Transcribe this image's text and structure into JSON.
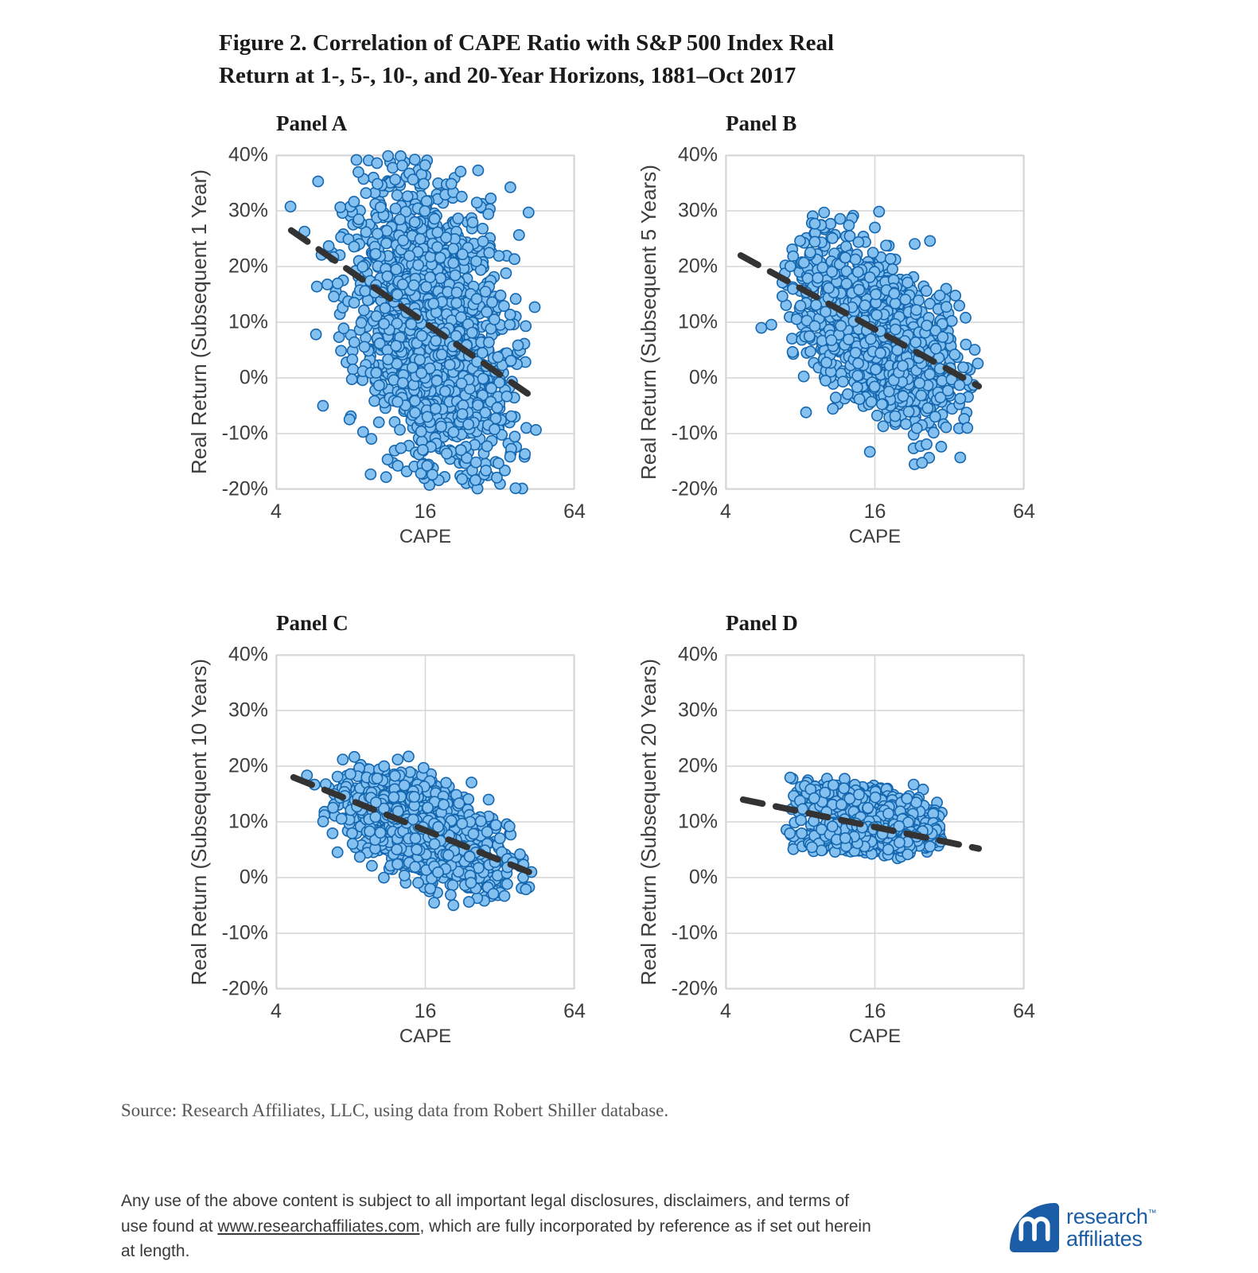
{
  "page": {
    "title_line1": "Figure 2. Correlation of CAPE Ratio with S&P 500 Index Real",
    "title_line2": "Return at 1-, 5-, 10-, and 20-Year Horizons, 1881–Oct 2017",
    "source_text": "Source:  Research Affiliates, LLC, using data from Robert Shiller database.",
    "legal_pre": "Any use of the above content is subject to all important legal disclosures, disclaimers, and terms of use found at ",
    "legal_link": "www.researchaffiliates.com",
    "legal_post": ", which are fully incorporated by reference as if set out herein at length.",
    "logo": {
      "word1": "research",
      "tm": "™",
      "word2": "affiliates"
    }
  },
  "style": {
    "marker_fill": "#85C1F0",
    "marker_stroke": "#1467AF",
    "trend_color": "#333333",
    "grid_color": "#D6D6D6",
    "axis_text": "#3d3d3d",
    "logo_blue": "#1A5DA6"
  },
  "chart_data": {
    "type": "scatter",
    "x_scale": "log2",
    "xlabel": "CAPE",
    "x_ticks": [
      4,
      16,
      64
    ],
    "xlim": [
      4,
      64
    ],
    "y_ticks_pct": [
      40,
      30,
      20,
      10,
      0,
      -10,
      -20
    ],
    "ylim_pct": [
      -20,
      40
    ],
    "grid": true,
    "legend": "none",
    "marker_radius_px": 6.6,
    "panels": [
      {
        "label": "Panel A",
        "ylabel": "Real Return (Subsequent 1 Year)",
        "trendline": {
          "x1": 4.6,
          "y1_pct": 26.5,
          "x2": 42,
          "y2_pct": -3
        },
        "points": {
          "seed": 11,
          "n": 1500,
          "log2x_mean": 4.1,
          "log2x_sd": 0.55,
          "x_min": 4.5,
          "x_max": 45,
          "y_min": -20,
          "y_max": 40,
          "bands": [
            {
              "weight": 1,
              "y_at_x4_pct": 28.4,
              "slope_pct_per_log2": -9.25,
              "y_sd_pct": 13
            }
          ]
        }
      },
      {
        "label": "Panel B",
        "ylabel": "Real Return (Subsequent 5 Years)",
        "trendline": {
          "x1": 4.6,
          "y1_pct": 22,
          "x2": 42,
          "y2_pct": -1.5
        },
        "points": {
          "seed": 22,
          "n": 1450,
          "log2x_mean": 4.05,
          "log2x_sd": 0.5,
          "x_min": 4.6,
          "x_max": 43,
          "y_min": -18,
          "y_max": 36,
          "bands": [
            {
              "weight": 1,
              "y_at_x4_pct": 23.5,
              "slope_pct_per_log2": -7.4,
              "y_sd_pct": 6.5
            }
          ]
        }
      },
      {
        "label": "Panel C",
        "ylabel": "Real Return (Subsequent 10 Years)",
        "trendline": {
          "x1": 4.7,
          "y1_pct": 18,
          "x2": 42,
          "y2_pct": 1
        },
        "points": {
          "seed": 33,
          "n": 1450,
          "log2x_mean": 4.0,
          "log2x_sd": 0.5,
          "x_min": 4.7,
          "x_max": 43,
          "y_min": -5,
          "y_max": 22,
          "bands": [
            {
              "weight": 1,
              "y_at_x4_pct": 19.2,
              "slope_pct_per_log2": -5.4,
              "y_sd_pct": 4.2
            }
          ]
        }
      },
      {
        "label": "Panel D",
        "ylabel": "Real Return (Subsequent 20 Years)",
        "trendline": {
          "x1": 4.7,
          "y1_pct": 14,
          "x2": 42,
          "y2_pct": 5.2
        },
        "points": {
          "seed": 44,
          "n": 1350,
          "log2x_mean": 3.9,
          "log2x_sd": 0.45,
          "x_min": 4.6,
          "x_max": 30,
          "y_min": 2,
          "y_max": 19,
          "bands": [
            {
              "weight": 0.55,
              "y_at_x4_pct": 17.6,
              "slope_pct_per_log2": -2.65,
              "y_sd_pct": 1.6
            },
            {
              "weight": 0.45,
              "y_at_x4_pct": 7.9,
              "slope_pct_per_log2": -0.32,
              "y_sd_pct": 1.3
            }
          ]
        }
      }
    ]
  }
}
